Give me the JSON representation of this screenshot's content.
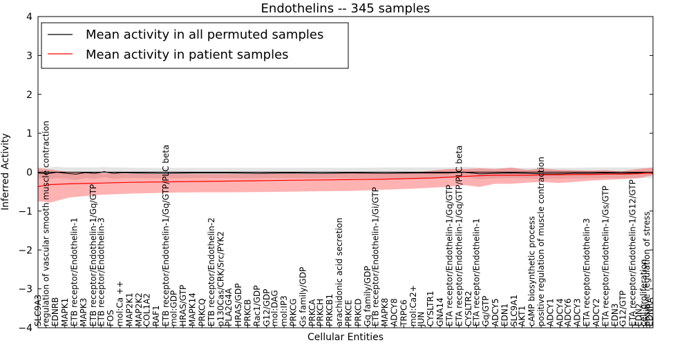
{
  "chart_data": {
    "type": "line",
    "title": "Endothelins -- 345 samples",
    "xlabel": "Cellular Entities",
    "ylabel": "Inferred Activity",
    "ylim": [
      -4,
      4
    ],
    "yticks": [
      4,
      3,
      2,
      1,
      0,
      -1,
      -2,
      -3,
      -4
    ],
    "yticklabels": [
      "4",
      "3",
      "2",
      "1",
      "0",
      "−1",
      "−2",
      "−3",
      "−4"
    ],
    "grid": false,
    "legend_position": "upper-left",
    "categories": [
      "SLC9A3",
      "regulation of vascular smooth muscle contraction",
      "EDNRB",
      "MAPK1",
      "ETB receptor/Endothelin-1",
      "MAPK3",
      "ETB receptor/Endothelin-1/Gq/GTP",
      "ETB receptor/Endothelin-3",
      "FOS",
      "mol:Ca ++",
      "MAP2K1",
      "MAP2K2",
      "COL1A2",
      "RAF1",
      "ETB receptor/Endothelin-1/Gq/GTP/PLC beta",
      "mol:GDP",
      "HRAS/GTP",
      "MAPK14",
      "PRKCQ",
      "ETB receptor/Endothelin-2",
      "p130Cas/CRK/Src/PYK2",
      "PLA2G4A",
      "HRAS/GDP",
      "PRKCB",
      "Rac1/GDP",
      "G12/GDP",
      "mol:DAG",
      "mol:IP3",
      "PRKCG",
      "Gs family/GDP",
      "PRKCA",
      "PRKCH",
      "PRKCB1",
      "arachidonic acid secretion",
      "PRKCE",
      "PRKCD",
      "Gq family/GDP",
      "ETB receptor/Endothelin-1/Gi/GTP",
      "MAPK8",
      "ADCY8",
      "TRPC6",
      "mol:Ca2+",
      "JUN",
      "CYSLTR1",
      "GNA14",
      "ETA receptor/Endothelin-1/Gq/GTP",
      "ETA receptor/Endothelin-1/Gq/GTP/PLC beta",
      "CYSLTR2",
      "ETA receptor/Endothelin-1",
      "Gq/GTP",
      "ADCY5",
      "EDN1",
      "SLC9A1",
      "AKT1",
      "cAMP biosynthetic process",
      "positive regulation of muscle contraction",
      "ADCY1",
      "ADCY4",
      "ADCY6",
      "ADCY3",
      "ETA receptor/Endothelin-3",
      "ADCY2",
      "ETA receptor/Endothelin-1/Gs/GTP",
      "EDN3",
      "G12/GTP",
      "ETA receptor/Endothelin-1/G12/GTP",
      "EDN2",
      "cell proliferation",
      "positive regulation of stress",
      "EDNRA"
    ],
    "tick_positions": [
      0,
      5,
      11,
      17,
      23,
      29,
      35,
      40,
      46,
      52,
      58,
      64,
      69,
      75,
      81,
      86,
      92,
      98,
      104,
      110,
      116,
      121,
      127,
      133,
      139,
      145,
      150,
      156,
      162,
      168,
      174,
      179,
      185,
      191,
      197,
      203,
      209,
      214,
      220,
      226,
      232,
      238,
      243,
      249,
      255,
      261,
      267,
      273,
      278,
      284,
      290,
      296,
      302,
      307,
      313,
      319,
      325,
      331,
      336,
      342,
      348,
      354,
      360,
      366,
      371,
      377,
      381,
      384,
      386,
      388
    ],
    "xlim": [
      0,
      390
    ],
    "series": [
      {
        "name": "Mean activity in all permuted samples",
        "color": "#000000",
        "x": [
          0,
          6,
          12,
          18,
          24,
          30,
          36,
          42,
          48,
          54,
          60,
          80,
          100,
          120,
          140,
          160,
          180,
          200,
          220,
          240,
          260,
          270,
          280,
          290,
          300,
          310,
          320,
          330,
          340,
          350,
          360,
          370,
          380,
          390
        ],
        "values": [
          -0.02,
          -0.04,
          0.0,
          -0.03,
          -0.05,
          -0.01,
          -0.03,
          0.01,
          -0.03,
          -0.01,
          -0.02,
          -0.03,
          -0.02,
          -0.02,
          -0.03,
          -0.02,
          -0.03,
          -0.02,
          -0.03,
          -0.02,
          -0.02,
          0.0,
          -0.04,
          -0.03,
          -0.02,
          -0.03,
          -0.04,
          -0.04,
          -0.03,
          -0.03,
          -0.02,
          -0.03,
          -0.02,
          -0.03
        ],
        "band_upper": [
          0.13,
          0.12,
          0.14,
          0.12,
          0.12,
          0.12,
          0.12,
          0.13,
          0.12,
          0.12,
          0.11,
          0.11,
          0.11,
          0.11,
          0.11,
          0.11,
          0.11,
          0.11,
          0.12,
          0.12,
          0.12,
          0.14,
          0.12,
          0.11,
          0.11,
          0.11,
          0.11,
          0.11,
          0.11,
          0.12,
          0.12,
          0.12,
          0.12,
          0.12
        ],
        "band_lower": [
          -0.16,
          -0.18,
          -0.15,
          -0.17,
          -0.2,
          -0.15,
          -0.17,
          -0.13,
          -0.17,
          -0.15,
          -0.15,
          -0.16,
          -0.15,
          -0.15,
          -0.16,
          -0.15,
          -0.16,
          -0.15,
          -0.16,
          -0.15,
          -0.15,
          -0.13,
          -0.18,
          -0.16,
          -0.15,
          -0.16,
          -0.17,
          -0.17,
          -0.16,
          -0.16,
          -0.15,
          -0.16,
          -0.15,
          -0.16
        ]
      },
      {
        "name": "Mean activity in patient samples",
        "color": "#ff0000",
        "x": [
          0,
          8,
          20,
          40,
          60,
          80,
          100,
          120,
          140,
          160,
          180,
          200,
          220,
          240,
          250,
          260,
          270,
          280,
          290,
          300,
          310,
          320,
          330,
          340,
          350,
          360,
          370,
          380,
          385,
          390
        ],
        "values": [
          -0.37,
          -0.32,
          -0.3,
          -0.28,
          -0.26,
          -0.25,
          -0.24,
          -0.23,
          -0.22,
          -0.21,
          -0.2,
          -0.19,
          -0.18,
          -0.16,
          -0.15,
          -0.13,
          -0.11,
          -0.09,
          -0.08,
          -0.08,
          -0.08,
          -0.07,
          -0.07,
          -0.06,
          -0.06,
          -0.05,
          -0.05,
          -0.04,
          -0.03,
          -0.02
        ],
        "band_upper": [
          0.1,
          0.07,
          0.0,
          -0.02,
          -0.04,
          -0.05,
          -0.05,
          -0.05,
          -0.04,
          -0.04,
          -0.04,
          -0.03,
          -0.02,
          0.0,
          0.04,
          0.08,
          0.08,
          0.1,
          0.08,
          0.12,
          0.06,
          0.09,
          0.06,
          0.05,
          0.04,
          0.05,
          0.02,
          0.08,
          0.1,
          0.12
        ],
        "band_lower": [
          -0.75,
          -0.78,
          -0.65,
          -0.58,
          -0.55,
          -0.53,
          -0.52,
          -0.52,
          -0.51,
          -0.5,
          -0.49,
          -0.48,
          -0.45,
          -0.42,
          -0.4,
          -0.38,
          -0.33,
          -0.38,
          -0.3,
          -0.3,
          -0.27,
          -0.25,
          -0.28,
          -0.25,
          -0.22,
          -0.2,
          -0.18,
          -0.16,
          -0.12,
          -0.08
        ]
      }
    ]
  }
}
